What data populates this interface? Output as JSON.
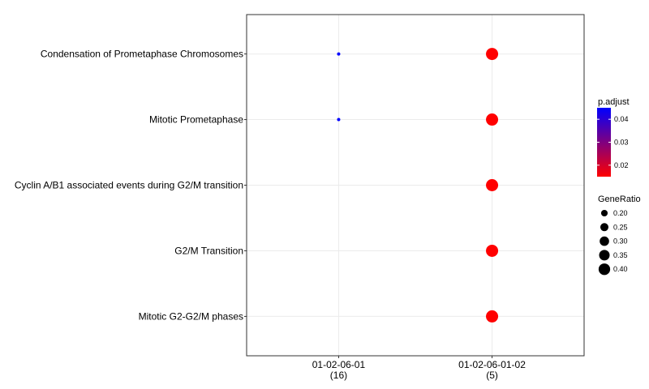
{
  "chart_data": {
    "type": "scatter",
    "title": "",
    "xlabel": "",
    "ylabel": "",
    "grid": true,
    "legend_position": "right",
    "x_categories": [
      {
        "label": "01-02-06-01",
        "sublabel": "(16)"
      },
      {
        "label": "01-02-06-01-02",
        "sublabel": "(5)"
      }
    ],
    "y_categories": [
      "Condensation of Prometaphase Chromosomes",
      "Mitotic Prometaphase",
      "Cyclin A/B1 associated events during G2/M transition",
      "G2/M Transition",
      "Mitotic G2-G2/M phases"
    ],
    "points": [
      {
        "x": "01-02-06-01",
        "y": "Condensation of Prometaphase Chromosomes",
        "gene_ratio": 0.125,
        "p_adjust": 0.045
      },
      {
        "x": "01-02-06-01",
        "y": "Mitotic Prometaphase",
        "gene_ratio": 0.125,
        "p_adjust": 0.045
      },
      {
        "x": "01-02-06-01-02",
        "y": "Condensation of Prometaphase Chromosomes",
        "gene_ratio": 0.4,
        "p_adjust": 0.015
      },
      {
        "x": "01-02-06-01-02",
        "y": "Mitotic Prometaphase",
        "gene_ratio": 0.4,
        "p_adjust": 0.015
      },
      {
        "x": "01-02-06-01-02",
        "y": "Cyclin A/B1 associated events during G2/M transition",
        "gene_ratio": 0.4,
        "p_adjust": 0.015
      },
      {
        "x": "01-02-06-01-02",
        "y": "G2/M Transition",
        "gene_ratio": 0.4,
        "p_adjust": 0.015
      },
      {
        "x": "01-02-06-01-02",
        "y": "Mitotic G2-G2/M phases",
        "gene_ratio": 0.4,
        "p_adjust": 0.015
      }
    ],
    "color_legend": {
      "title": "p.adjust",
      "ticks": [
        0.04,
        0.03,
        0.02
      ],
      "tick_labels": [
        "0.04",
        "0.03",
        "0.02"
      ],
      "low_color": "#ff0000",
      "high_color": "#0000ff",
      "range": [
        0.015,
        0.045
      ]
    },
    "size_legend": {
      "title": "GeneRatio",
      "values": [
        0.2,
        0.25,
        0.3,
        0.35,
        0.4
      ],
      "labels": [
        "0.20",
        "0.25",
        "0.30",
        "0.35",
        "0.40"
      ]
    },
    "colors": {
      "background": "#ffffff",
      "panel_border": "#333333",
      "grid": "#ebebeb",
      "point_low": "#ff0000",
      "point_high": "#0000ff"
    }
  }
}
